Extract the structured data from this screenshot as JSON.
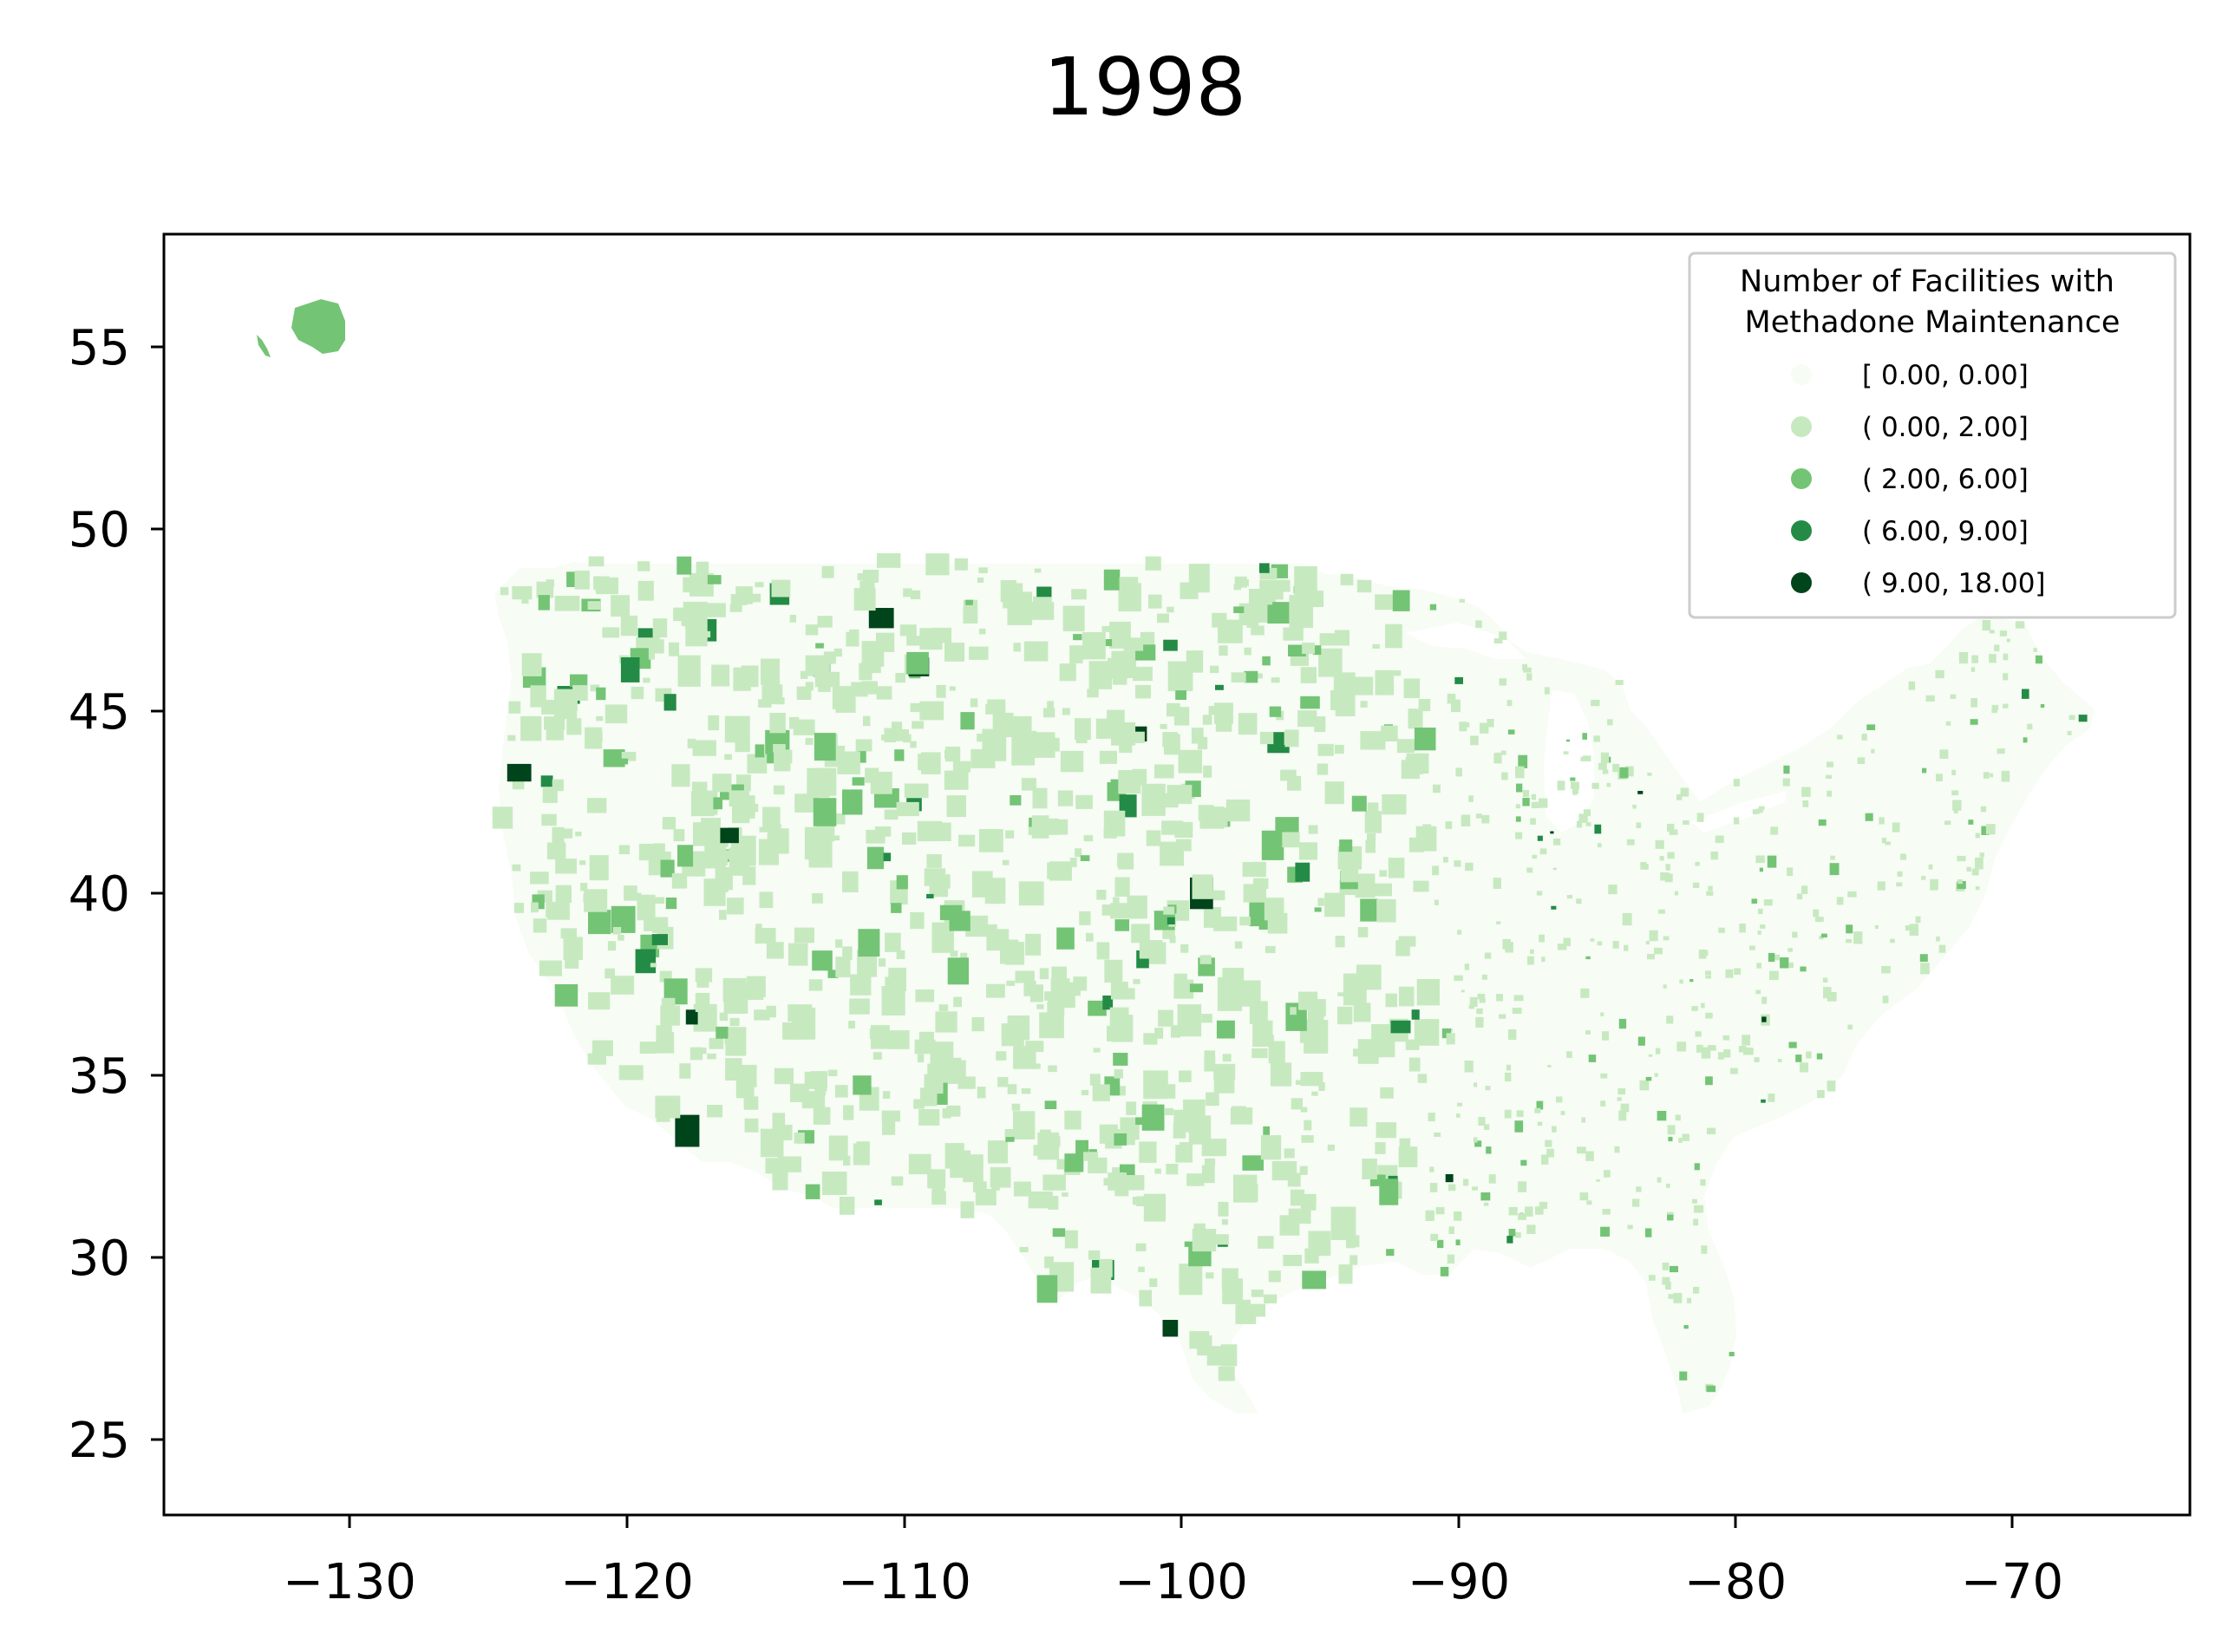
{
  "title": "1998",
  "axes": {
    "x_ticks": [
      "−130",
      "−120",
      "−110",
      "−100",
      "−90",
      "−80",
      "−70"
    ],
    "y_ticks": [
      "55",
      "50",
      "45",
      "40",
      "35",
      "30",
      "25"
    ]
  },
  "legend": {
    "title_line1": "Number of Facilities with",
    "title_line2": "Methadone Maintenance",
    "items": [
      {
        "label": "[ 0.00,  0.00]",
        "color": "#f7fcf5"
      },
      {
        "label": "( 0.00,  2.00]",
        "color": "#c7e9c0"
      },
      {
        "label": "( 2.00,  6.00]",
        "color": "#74c476"
      },
      {
        "label": "( 6.00,  9.00]",
        "color": "#238b45"
      },
      {
        "label": "( 9.00, 18.00]",
        "color": "#00441b"
      }
    ]
  },
  "chart_data": {
    "type": "choropleth",
    "title": "1998",
    "xlabel": "",
    "ylabel": "",
    "xlim": [
      -136.5,
      -63.8
    ],
    "ylim": [
      22.8,
      58.0
    ],
    "x_ticks": [
      -130,
      -120,
      -110,
      -100,
      -90,
      -80,
      -70
    ],
    "y_ticks": [
      25,
      30,
      35,
      40,
      45,
      50,
      55
    ],
    "grid": false,
    "legend_position": "top-right",
    "legend_title": "Number of Facilities with Methadone Maintenance",
    "bins": [
      {
        "range": "[0.00, 0.00]",
        "color": "#f7fcf5"
      },
      {
        "range": "(0.00, 2.00]",
        "color": "#c7e9c0"
      },
      {
        "range": "(2.00, 6.00]",
        "color": "#74c476"
      },
      {
        "range": "(6.00, 9.00]",
        "color": "#238b45"
      },
      {
        "range": "(9.00, 18.00]",
        "color": "#00441b"
      }
    ]
  }
}
